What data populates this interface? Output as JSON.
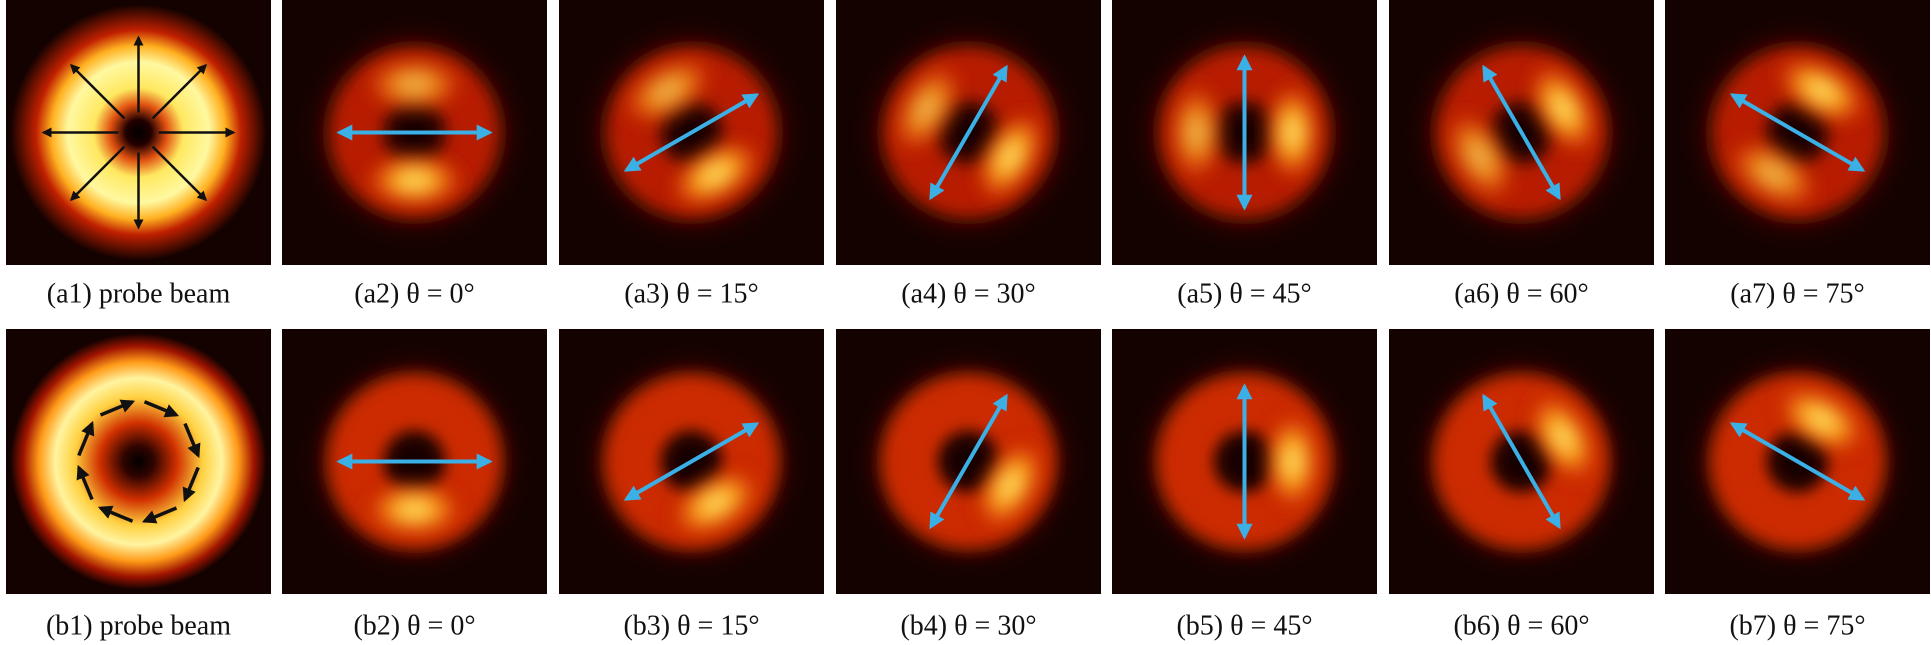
{
  "rows": [
    {
      "panels": [
        {
          "label": "(a1) probe beam"
        },
        {
          "label": "(a2) θ = 0°"
        },
        {
          "label": "(a3) θ = 15°"
        },
        {
          "label": "(a4) θ = 30°"
        },
        {
          "label": "(a5) θ = 45°"
        },
        {
          "label": "(a6) θ = 60°"
        },
        {
          "label": "(a7) θ = 75°"
        }
      ]
    },
    {
      "panels": [
        {
          "label": "(b1) probe beam"
        },
        {
          "label": "(b2) θ = 0°"
        },
        {
          "label": "(b3) θ = 15°"
        },
        {
          "label": "(b4) θ = 30°"
        },
        {
          "label": "(b5) θ = 45°"
        },
        {
          "label": "(b6) θ = 60°"
        },
        {
          "label": "(b7) θ = 75°"
        }
      ]
    }
  ]
}
